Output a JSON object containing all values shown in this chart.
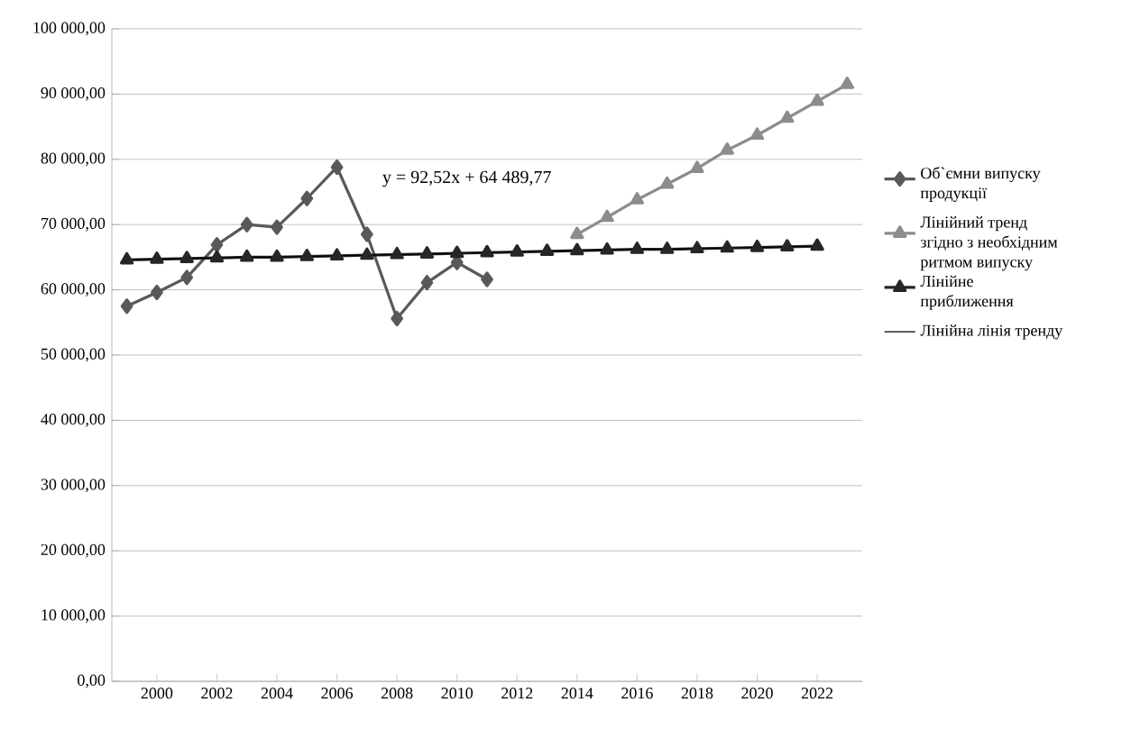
{
  "chart_data": {
    "type": "line",
    "categories": [
      null,
      "2000",
      null,
      "2002",
      null,
      "2004",
      null,
      "2006",
      null,
      "2008",
      null,
      "2010",
      null,
      "2012",
      null,
      "2014",
      null,
      "2016",
      null,
      "2018",
      null,
      "2020",
      null,
      "2022",
      null
    ],
    "series": [
      {
        "name": "Об`ємни випуску продукції",
        "color": "#595959",
        "marker": "diamond",
        "values": [
          57500,
          59600,
          61900,
          66900,
          70000,
          69600,
          74000,
          78800,
          68500,
          55600,
          61100,
          64200,
          61600,
          null,
          null,
          null,
          null,
          null,
          null,
          null,
          null,
          null,
          null,
          null,
          null
        ]
      },
      {
        "name": "Лінійний тренд згідно з необхідним ритмом випуску",
        "color": "#8c8c8c",
        "marker": "triangle",
        "values": [
          null,
          null,
          null,
          null,
          null,
          null,
          null,
          null,
          null,
          null,
          null,
          null,
          null,
          null,
          null,
          68500,
          71100,
          73800,
          76200,
          78600,
          81400,
          83700,
          86300,
          88900,
          91500
        ]
      },
      {
        "name": "Лінійне приближення",
        "color": "#262626",
        "marker": "triangle",
        "values": [
          64600,
          64700,
          64800,
          64900,
          65000,
          65000,
          65100,
          65200,
          65300,
          65400,
          65500,
          65600,
          65700,
          65800,
          65900,
          66000,
          66100,
          66200,
          66200,
          66300,
          66400,
          66500,
          66600,
          66700,
          null
        ]
      },
      {
        "name": "Лінійна лінія тренду",
        "color": "#000000",
        "marker": "none",
        "values": [
          64600,
          64700,
          64800,
          64900,
          65000,
          65000,
          65100,
          65200,
          65300,
          65400,
          65500,
          65600,
          65700,
          65800,
          65900,
          66000,
          66100,
          66200,
          66200,
          66300,
          66400,
          66500,
          66600,
          66700,
          null
        ]
      }
    ],
    "ylim": [
      0,
      100000
    ],
    "yticks": [
      {
        "value": 0,
        "label": "0,00"
      },
      {
        "value": 10000,
        "label": "10 000,00"
      },
      {
        "value": 20000,
        "label": "20 000,00"
      },
      {
        "value": 30000,
        "label": "30 000,00"
      },
      {
        "value": 40000,
        "label": "40 000,00"
      },
      {
        "value": 50000,
        "label": "50 000,00"
      },
      {
        "value": 60000,
        "label": "60 000,00"
      },
      {
        "value": 70000,
        "label": "70 000,00"
      },
      {
        "value": 80000,
        "label": "80 000,00"
      },
      {
        "value": 90000,
        "label": "90 000,00"
      },
      {
        "value": 100000,
        "label": "100 000,00"
      }
    ],
    "annotations": [
      "y = 92,52x + 64 489,77"
    ],
    "grid": "y",
    "legend": "right"
  }
}
